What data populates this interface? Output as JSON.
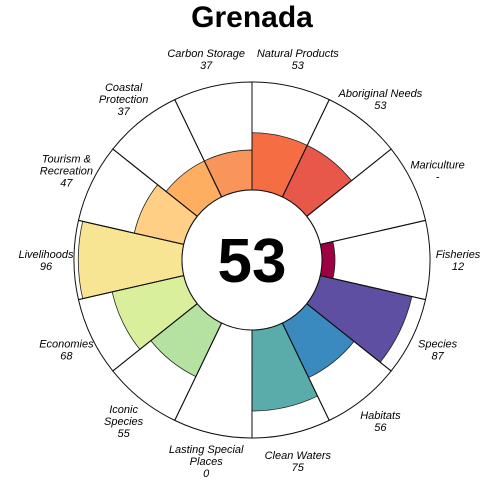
{
  "chart_data": {
    "type": "flower",
    "title": "Grenada",
    "center_score": "53",
    "value_range": [
      0,
      100
    ],
    "petals": [
      {
        "name": "Fisheries",
        "lines": [
          "Fisheries"
        ],
        "value": 12,
        "value_label": "12",
        "color": "#9e0142"
      },
      {
        "name": "Mariculture",
        "lines": [
          "Mariculture"
        ],
        "value": null,
        "value_label": "-",
        "color": "#d53e4f"
      },
      {
        "name": "Aboriginal Needs",
        "lines": [
          "Aboriginal Needs"
        ],
        "value": 53,
        "value_label": "53",
        "color": "#e8584a"
      },
      {
        "name": "Natural Products",
        "lines": [
          "Natural Products"
        ],
        "value": 53,
        "value_label": "53",
        "color": "#f46d43"
      },
      {
        "name": "Carbon Storage",
        "lines": [
          "Carbon Storage"
        ],
        "value": 37,
        "value_label": "37",
        "color": "#f9945a"
      },
      {
        "name": "Coastal Protection",
        "lines": [
          "Coastal",
          "Protection"
        ],
        "value": 37,
        "value_label": "37",
        "color": "#fdae61"
      },
      {
        "name": "Tourism & Recreation",
        "lines": [
          "Tourism &",
          "Recreation"
        ],
        "value": 47,
        "value_label": "47",
        "color": "#fecf84"
      },
      {
        "name": "Livelihoods",
        "lines": [
          "Livelihoods"
        ],
        "value": 96,
        "value_label": "96",
        "color": "#f8e593"
      },
      {
        "name": "Economies",
        "lines": [
          "Economies"
        ],
        "value": 68,
        "value_label": "68",
        "color": "#d9ef9b"
      },
      {
        "name": "Iconic Species",
        "lines": [
          "Iconic",
          "Species"
        ],
        "value": 55,
        "value_label": "55",
        "color": "#b6e2a1"
      },
      {
        "name": "Lasting Special Places",
        "lines": [
          "Lasting Special",
          "Places"
        ],
        "value": 0,
        "value_label": "0",
        "color": "#8ed0a4"
      },
      {
        "name": "Clean Waters",
        "lines": [
          "Clean Waters"
        ],
        "value": 75,
        "value_label": "75",
        "color": "#5aacaa"
      },
      {
        "name": "Habitats",
        "lines": [
          "Habitats"
        ],
        "value": 56,
        "value_label": "56",
        "color": "#3b8abf"
      },
      {
        "name": "Species",
        "lines": [
          "Species"
        ],
        "value": 87,
        "value_label": "87",
        "color": "#5e4fa2"
      }
    ]
  }
}
